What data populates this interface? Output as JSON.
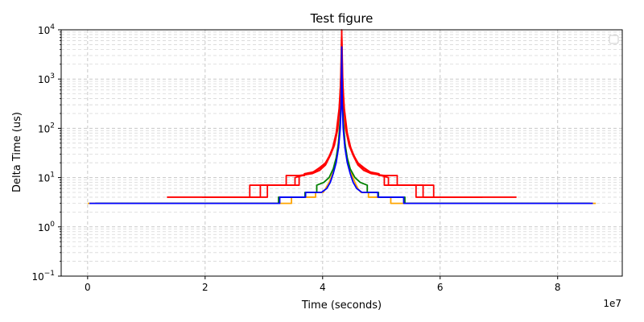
{
  "chart_data": {
    "type": "line",
    "title": "Test figure",
    "xlabel": "Time (seconds)",
    "ylabel": "Delta Time (us)",
    "x_offset_text": "1e7",
    "x_scale": "linear",
    "y_scale": "log",
    "xlim": [
      -4500000,
      91000000
    ],
    "ylim": [
      0.1,
      10000
    ],
    "x_ticks": [
      0,
      2,
      4,
      6,
      8
    ],
    "y_ticks": [
      {
        "value": 0.1,
        "base": "10",
        "exp": "−1"
      },
      {
        "value": 1,
        "base": "10",
        "exp": "0"
      },
      {
        "value": 10,
        "base": "10",
        "exp": "1"
      },
      {
        "value": 100,
        "base": "10",
        "exp": "2"
      },
      {
        "value": 1000,
        "base": "10",
        "exp": "3"
      },
      {
        "value": 10000,
        "base": "10",
        "exp": "4"
      }
    ],
    "grid": true,
    "legend": {
      "placement": "top-right",
      "entries": []
    },
    "series": [
      {
        "color": "#ffa500",
        "points": [
          [
            0,
            3
          ],
          [
            34700000,
            3
          ],
          [
            34700000,
            4
          ],
          [
            38800000,
            4
          ],
          [
            38800000,
            5
          ],
          [
            40100000,
            5
          ],
          [
            40500000,
            6
          ],
          [
            41100000,
            8
          ],
          [
            41700000,
            12
          ],
          [
            42200000,
            20
          ],
          [
            42600000,
            40
          ],
          [
            42900000,
            100
          ],
          [
            43100000,
            300
          ],
          [
            43250000,
            1500
          ],
          [
            43400000,
            300
          ],
          [
            43600000,
            100
          ],
          [
            43900000,
            40
          ],
          [
            44300000,
            20
          ],
          [
            44900000,
            12
          ],
          [
            45500000,
            8
          ],
          [
            46000000,
            6
          ],
          [
            46500000,
            5
          ],
          [
            47800000,
            5
          ],
          [
            47800000,
            4
          ],
          [
            51600000,
            4
          ],
          [
            51600000,
            3
          ],
          [
            86500000,
            3
          ]
        ]
      },
      {
        "color": "#008000",
        "points": [
          [
            1300000,
            3
          ],
          [
            32500000,
            3
          ],
          [
            32500000,
            4
          ],
          [
            37000000,
            4
          ],
          [
            37000000,
            5
          ],
          [
            39000000,
            5
          ],
          [
            39000000,
            7
          ],
          [
            40200000,
            8
          ],
          [
            41100000,
            10
          ],
          [
            41800000,
            15
          ],
          [
            42300000,
            25
          ],
          [
            42700000,
            50
          ],
          [
            43000000,
            150
          ],
          [
            43250000,
            2000
          ],
          [
            43500000,
            150
          ],
          [
            43800000,
            50
          ],
          [
            44200000,
            25
          ],
          [
            44700000,
            15
          ],
          [
            45500000,
            10
          ],
          [
            46400000,
            8
          ],
          [
            47600000,
            7
          ],
          [
            47600000,
            5
          ],
          [
            49500000,
            5
          ],
          [
            49500000,
            4
          ],
          [
            54000000,
            4
          ],
          [
            54000000,
            3
          ],
          [
            85500000,
            3
          ]
        ]
      },
      {
        "color": "#ff0000",
        "points": [
          [
            13500000,
            4
          ],
          [
            27600000,
            4
          ],
          [
            27600000,
            7
          ],
          [
            33800000,
            7
          ],
          [
            33800000,
            11
          ],
          [
            36900000,
            11
          ],
          [
            36900000,
            12
          ],
          [
            38400000,
            13
          ],
          [
            39500000,
            16
          ],
          [
            40500000,
            20
          ],
          [
            41300000,
            30
          ],
          [
            42000000,
            50
          ],
          [
            42500000,
            100
          ],
          [
            42900000,
            300
          ],
          [
            43150000,
            1500
          ],
          [
            43250000,
            10000
          ],
          [
            43350000,
            1500
          ],
          [
            43600000,
            300
          ],
          [
            44000000,
            100
          ],
          [
            44500000,
            50
          ],
          [
            45200000,
            30
          ],
          [
            46000000,
            20
          ],
          [
            47000000,
            16
          ],
          [
            48100000,
            13
          ],
          [
            49600000,
            12
          ],
          [
            49600000,
            11
          ],
          [
            52700000,
            11
          ],
          [
            52700000,
            7
          ],
          [
            58900000,
            7
          ],
          [
            58900000,
            4
          ],
          [
            73000000,
            4
          ]
        ]
      },
      {
        "color": "#ff0000",
        "points": [
          [
            19500000,
            4
          ],
          [
            19500000,
            4
          ],
          [
            29400000,
            4
          ],
          [
            29400000,
            7
          ],
          [
            35300000,
            7
          ],
          [
            35300000,
            10
          ],
          [
            37700000,
            12
          ],
          [
            39000000,
            14
          ],
          [
            40100000,
            17
          ],
          [
            41000000,
            25
          ],
          [
            41700000,
            40
          ],
          [
            42300000,
            80
          ],
          [
            42800000,
            250
          ],
          [
            43150000,
            1200
          ],
          [
            43250000,
            9000
          ],
          [
            43350000,
            1200
          ],
          [
            43700000,
            250
          ],
          [
            44200000,
            80
          ],
          [
            44800000,
            40
          ],
          [
            45500000,
            25
          ],
          [
            46400000,
            17
          ],
          [
            47500000,
            14
          ],
          [
            48800000,
            12
          ],
          [
            51200000,
            10
          ],
          [
            51200000,
            7
          ],
          [
            57100000,
            7
          ],
          [
            57100000,
            4
          ],
          [
            67200000,
            4
          ]
        ]
      },
      {
        "color": "#ff0000",
        "points": [
          [
            24000000,
            4
          ],
          [
            30600000,
            4
          ],
          [
            30600000,
            7
          ],
          [
            36000000,
            7
          ],
          [
            36000000,
            11
          ],
          [
            38200000,
            12
          ],
          [
            39500000,
            14
          ],
          [
            40500000,
            18
          ],
          [
            41300000,
            28
          ],
          [
            42000000,
            45
          ],
          [
            42600000,
            100
          ],
          [
            43000000,
            400
          ],
          [
            43250000,
            9500
          ],
          [
            43500000,
            400
          ],
          [
            43900000,
            100
          ],
          [
            44500000,
            45
          ],
          [
            45200000,
            28
          ],
          [
            46000000,
            18
          ],
          [
            47000000,
            14
          ],
          [
            48300000,
            12
          ],
          [
            50500000,
            11
          ],
          [
            50500000,
            7
          ],
          [
            55900000,
            7
          ],
          [
            55900000,
            4
          ],
          [
            62600000,
            4
          ]
        ]
      },
      {
        "color": "#0000ff",
        "points": [
          [
            300000,
            3
          ],
          [
            32700000,
            3
          ],
          [
            32700000,
            4
          ],
          [
            37100000,
            4
          ],
          [
            37100000,
            5
          ],
          [
            39800000,
            5
          ],
          [
            40700000,
            6
          ],
          [
            41300000,
            8
          ],
          [
            41800000,
            12
          ],
          [
            42300000,
            20
          ],
          [
            42700000,
            40
          ],
          [
            43000000,
            100
          ],
          [
            43150000,
            300
          ],
          [
            43250000,
            4500
          ],
          [
            43350000,
            300
          ],
          [
            43500000,
            100
          ],
          [
            43800000,
            40
          ],
          [
            44200000,
            20
          ],
          [
            44700000,
            12
          ],
          [
            45200000,
            8
          ],
          [
            45800000,
            6
          ],
          [
            46700000,
            5
          ],
          [
            49400000,
            5
          ],
          [
            49400000,
            4
          ],
          [
            53800000,
            4
          ],
          [
            53800000,
            3
          ],
          [
            86000000,
            3
          ]
        ]
      }
    ]
  }
}
